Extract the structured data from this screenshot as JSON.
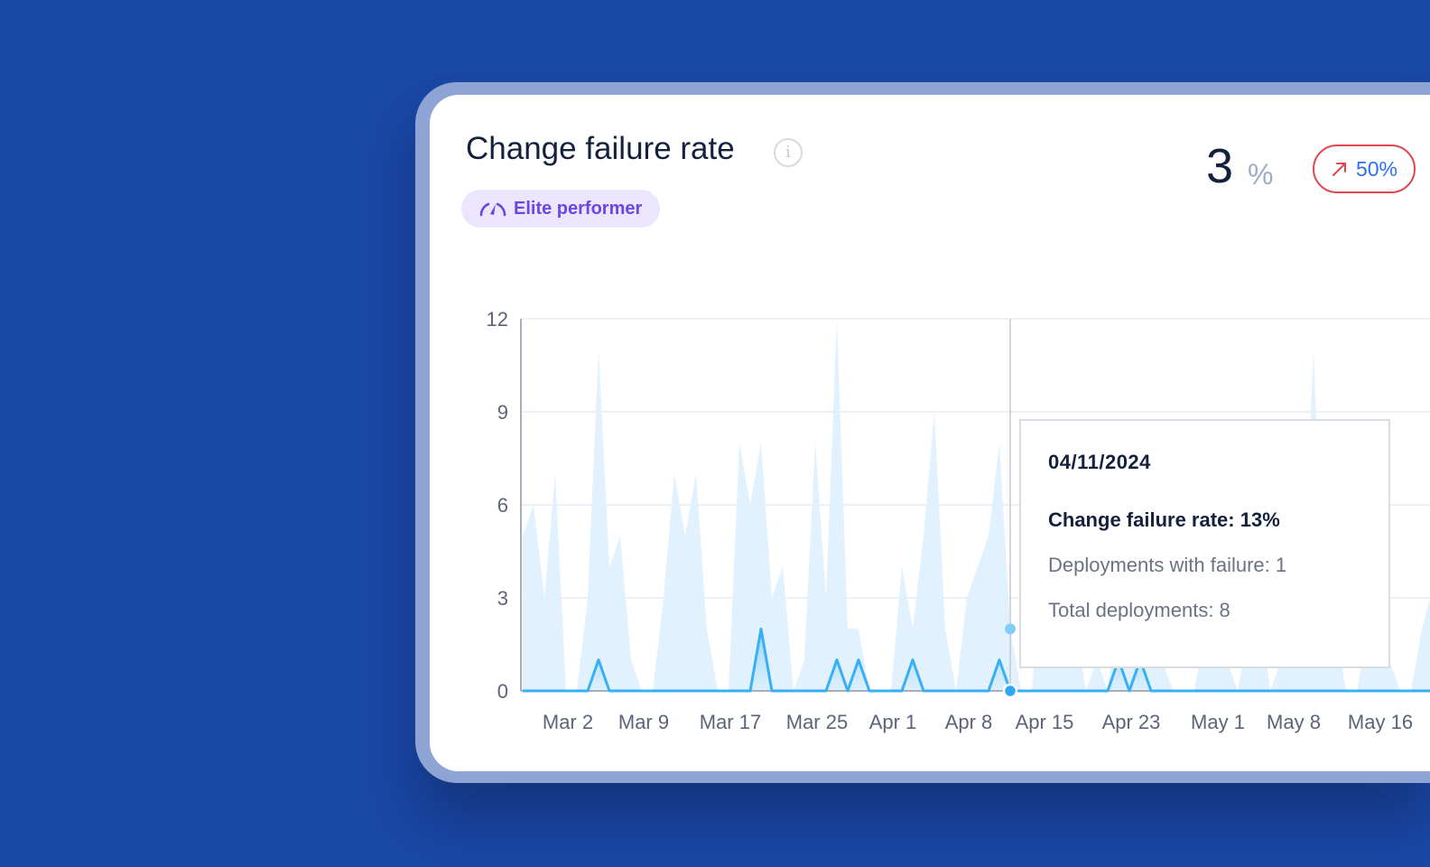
{
  "card": {
    "title": "Change failure rate",
    "info_icon": "info-circle-icon",
    "badge": {
      "label": "Elite performer",
      "icon": "speedometer-icon"
    },
    "metric": {
      "value": "3",
      "unit": "%"
    },
    "trend": {
      "value": "50%",
      "icon": "arrow-up-right-icon",
      "border_color": "#e0474c",
      "text_color": "#2f6ff0"
    }
  },
  "tooltip": {
    "date": "04/11/2024",
    "rate": "Change failure rate: 13%",
    "failures": "Deployments with failure: 1",
    "total": "Total deployments: 8"
  },
  "chart_data": {
    "type": "area",
    "x_start": "2024-02-26",
    "x_step": "1 day",
    "ylim": [
      0,
      12
    ],
    "yticks": [
      0,
      3,
      6,
      9,
      12
    ],
    "grid": true,
    "xticks": [
      {
        "label": "Mar 2",
        "date": "2024-03-01"
      },
      {
        "label": "Mar 9",
        "date": "2024-03-08"
      },
      {
        "label": "Mar 17",
        "date": "2024-03-16"
      },
      {
        "label": "Mar 25",
        "date": "2024-03-24"
      },
      {
        "label": "Apr 1",
        "date": "2024-03-31"
      },
      {
        "label": "Apr 8",
        "date": "2024-04-07"
      },
      {
        "label": "Apr 15",
        "date": "2024-04-14"
      },
      {
        "label": "Apr 23",
        "date": "2024-04-22"
      },
      {
        "label": "May 1",
        "date": "2024-04-30"
      },
      {
        "label": "May 8",
        "date": "2024-05-07"
      },
      {
        "label": "May 16",
        "date": "2024-05-15"
      }
    ],
    "hover_date": "2024-04-11",
    "series": [
      {
        "key": "total",
        "color": "#e1f1fd",
        "values": [
          5,
          6,
          3,
          7,
          0,
          0,
          3,
          11,
          4,
          5,
          1,
          0,
          0,
          3,
          7,
          5,
          7,
          2,
          0,
          0,
          8,
          6,
          8,
          3,
          4,
          0,
          1,
          8,
          3,
          12,
          2,
          2,
          0,
          0,
          0,
          4,
          2,
          5,
          9,
          2,
          0,
          3,
          4,
          5,
          8,
          2,
          0,
          0,
          4,
          6,
          3,
          2,
          0,
          1,
          0,
          3,
          2,
          4,
          3,
          1,
          0,
          0,
          0,
          2,
          3,
          1,
          0,
          2,
          3,
          0,
          1,
          5,
          3,
          11,
          2,
          2,
          0,
          0,
          2,
          5,
          1,
          0,
          0,
          2,
          3
        ]
      },
      {
        "key": "failures",
        "color": "#38b0f5",
        "values": [
          0,
          0,
          0,
          0,
          0,
          0,
          0,
          1,
          0,
          0,
          0,
          0,
          0,
          0,
          0,
          0,
          0,
          0,
          0,
          0,
          0,
          0,
          2,
          0,
          0,
          0,
          0,
          0,
          0,
          1,
          0,
          1,
          0,
          0,
          0,
          0,
          1,
          0,
          0,
          0,
          0,
          0,
          0,
          0,
          1,
          0,
          0,
          0,
          0,
          0,
          0,
          0,
          0,
          0,
          0,
          1,
          0,
          1,
          0,
          0,
          0,
          0,
          0,
          0,
          0,
          0,
          0,
          0,
          0,
          0,
          0,
          0,
          0,
          0,
          0,
          0,
          0,
          0,
          0,
          0,
          0,
          0,
          0,
          0,
          0
        ]
      }
    ]
  }
}
